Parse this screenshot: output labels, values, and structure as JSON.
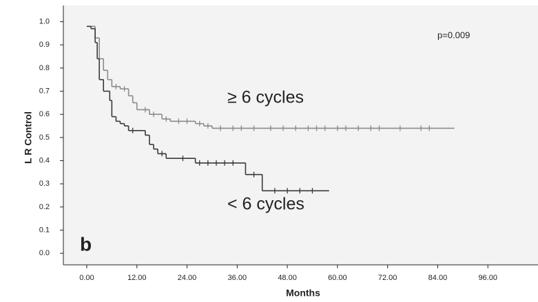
{
  "chart_data": {
    "type": "step",
    "xlabel": "Months",
    "ylabel": "L R Control",
    "annotations": [
      "p=0.009",
      "≥ 6 cycles",
      "< 6 cycles",
      "b"
    ],
    "xlim": [
      -5.6,
      108
    ],
    "ylim": [
      -0.05,
      1.07
    ],
    "xticks": [
      {
        "value": 0,
        "label": "0.00"
      },
      {
        "value": 12,
        "label": "12.00"
      },
      {
        "value": 24,
        "label": "24.00"
      },
      {
        "value": 36,
        "label": "36.00"
      },
      {
        "value": 48,
        "label": "48.00"
      },
      {
        "value": 60,
        "label": "60.00"
      },
      {
        "value": 72,
        "label": "72.00"
      },
      {
        "value": 84,
        "label": "84.00"
      },
      {
        "value": 96,
        "label": "96.00"
      }
    ],
    "yticks": [
      {
        "value": 0,
        "label": "0.0"
      },
      0.1,
      0.2,
      0.3,
      0.4,
      0.5,
      0.6,
      0.7,
      0.8,
      0.9,
      {
        "value": 1,
        "label": "1.0"
      }
    ],
    "series": [
      {
        "color": "#8a8a8a",
        "x": [
          0,
          2,
          3,
          4,
          5,
          6,
          8,
          10,
          11,
          12,
          15,
          18,
          20,
          26,
          28,
          30,
          88
        ],
        "values": [
          0.98,
          0.93,
          0.84,
          0.79,
          0.75,
          0.72,
          0.71,
          0.68,
          0.65,
          0.62,
          0.6,
          0.58,
          0.57,
          0.56,
          0.55,
          0.54,
          0.54
        ],
        "censored_x": [
          7,
          9,
          14,
          16,
          19,
          22,
          24,
          27,
          29,
          32,
          35,
          37,
          40,
          44,
          47,
          50,
          53,
          55,
          57,
          60,
          62,
          65,
          68,
          70,
          75,
          80,
          82
        ],
        "censored_values": [
          0.72,
          0.71,
          0.62,
          0.6,
          0.58,
          0.57,
          0.57,
          0.56,
          0.55,
          0.54,
          0.54,
          0.54,
          0.54,
          0.54,
          0.54,
          0.54,
          0.54,
          0.54,
          0.54,
          0.54,
          0.54,
          0.54,
          0.54,
          0.54,
          0.54,
          0.54,
          0.54
        ]
      },
      {
        "color": "#383838",
        "x": [
          0,
          1,
          2,
          2.5,
          3,
          4,
          5.5,
          6,
          7,
          8,
          9,
          10,
          14,
          15,
          16,
          17,
          19,
          26,
          38,
          42,
          58
        ],
        "values": [
          0.98,
          0.97,
          0.91,
          0.84,
          0.75,
          0.7,
          0.66,
          0.59,
          0.57,
          0.56,
          0.55,
          0.53,
          0.51,
          0.47,
          0.45,
          0.43,
          0.41,
          0.39,
          0.34,
          0.27,
          0.27
        ],
        "censored_x": [
          11,
          18,
          23,
          27,
          29,
          31,
          33,
          35,
          40,
          45,
          48,
          51,
          54
        ],
        "censored_values": [
          0.53,
          0.43,
          0.41,
          0.39,
          0.39,
          0.39,
          0.39,
          0.39,
          0.34,
          0.27,
          0.27,
          0.27,
          0.27
        ]
      }
    ]
  }
}
